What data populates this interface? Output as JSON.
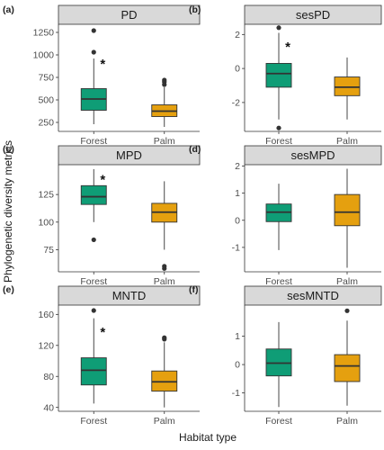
{
  "chart_data": {
    "type": "box",
    "ylabel": "Phylogenetic diversity metrics",
    "xlabel": "Habitat type",
    "categories": [
      "Forest",
      "Palm"
    ],
    "colors": {
      "Forest": "#0f9d76",
      "Palm": "#e5a00f"
    },
    "panels": [
      {
        "label": "(a)",
        "title": "PD",
        "ylim": [
          150,
          1340
        ],
        "yticks": [
          250,
          500,
          750,
          1000,
          1250
        ],
        "boxes": [
          {
            "category": "Forest",
            "q1": 385,
            "median": 510,
            "q3": 625,
            "whisker_low": 230,
            "whisker_high": 960,
            "outliers": [
              1030,
              1270
            ]
          },
          {
            "category": "Palm",
            "q1": 315,
            "median": 375,
            "q3": 445,
            "whisker_low": 200,
            "whisker_high": 640,
            "outliers": [
              670,
              700,
              720
            ]
          }
        ],
        "annotation": {
          "text": "*",
          "category": "Forest",
          "y": 940
        }
      },
      {
        "label": "(b)",
        "title": "sesPD",
        "ylim": [
          -3.7,
          2.6
        ],
        "yticks": [
          -2,
          0,
          2
        ],
        "boxes": [
          {
            "category": "Forest",
            "q1": -1.1,
            "median": -0.3,
            "q3": 0.3,
            "whisker_low": -3.0,
            "whisker_high": 2.1,
            "outliers": [
              2.4,
              -3.5
            ]
          },
          {
            "category": "Palm",
            "q1": -1.6,
            "median": -1.1,
            "q3": -0.5,
            "whisker_low": -3.0,
            "whisker_high": 0.65,
            "outliers": []
          }
        ],
        "annotation": {
          "text": "*",
          "category": "Forest",
          "y": 1.5
        }
      },
      {
        "label": "(c)",
        "title": "MPD",
        "ylim": [
          55,
          152
        ],
        "yticks": [
          75,
          100,
          125
        ],
        "boxes": [
          {
            "category": "Forest",
            "q1": 116,
            "median": 123,
            "q3": 133,
            "whisker_low": 100,
            "whisker_high": 148,
            "outliers": [
              84
            ]
          },
          {
            "category": "Palm",
            "q1": 100,
            "median": 109,
            "q3": 117,
            "whisker_low": 75,
            "whisker_high": 137,
            "outliers": [
              58,
              60
            ]
          }
        ],
        "annotation": {
          "text": "*",
          "category": "Forest",
          "y": 142
        }
      },
      {
        "label": "(d)",
        "title": "sesMPD",
        "ylim": [
          -1.9,
          2.05
        ],
        "yticks": [
          -1,
          0,
          1,
          2
        ],
        "boxes": [
          {
            "category": "Forest",
            "q1": -0.05,
            "median": 0.3,
            "q3": 0.6,
            "whisker_low": -1.1,
            "whisker_high": 1.35,
            "outliers": []
          },
          {
            "category": "Palm",
            "q1": -0.2,
            "median": 0.3,
            "q3": 0.95,
            "whisker_low": -1.75,
            "whisker_high": 1.9,
            "outliers": []
          }
        ]
      },
      {
        "label": "(e)",
        "title": "MNTD",
        "ylim": [
          35,
          172
        ],
        "yticks": [
          40,
          80,
          120,
          160
        ],
        "boxes": [
          {
            "category": "Forest",
            "q1": 69,
            "median": 88,
            "q3": 104,
            "whisker_low": 45,
            "whisker_high": 155,
            "outliers": [
              165
            ]
          },
          {
            "category": "Palm",
            "q1": 61,
            "median": 73,
            "q3": 87,
            "whisker_low": 40,
            "whisker_high": 124,
            "outliers": [
              128,
              130
            ]
          }
        ],
        "annotation": {
          "text": "*",
          "category": "Forest",
          "y": 142
        }
      },
      {
        "label": "(f)",
        "title": "sesMNTD",
        "ylim": [
          -1.65,
          2.1
        ],
        "yticks": [
          -1,
          0,
          1
        ],
        "boxes": [
          {
            "category": "Forest",
            "q1": -0.4,
            "median": 0.05,
            "q3": 0.55,
            "whisker_low": -1.5,
            "whisker_high": 1.5,
            "outliers": []
          },
          {
            "category": "Palm",
            "q1": -0.6,
            "median": -0.05,
            "q3": 0.35,
            "whisker_low": -1.45,
            "whisker_high": 1.55,
            "outliers": [
              1.9
            ]
          }
        ]
      }
    ]
  }
}
